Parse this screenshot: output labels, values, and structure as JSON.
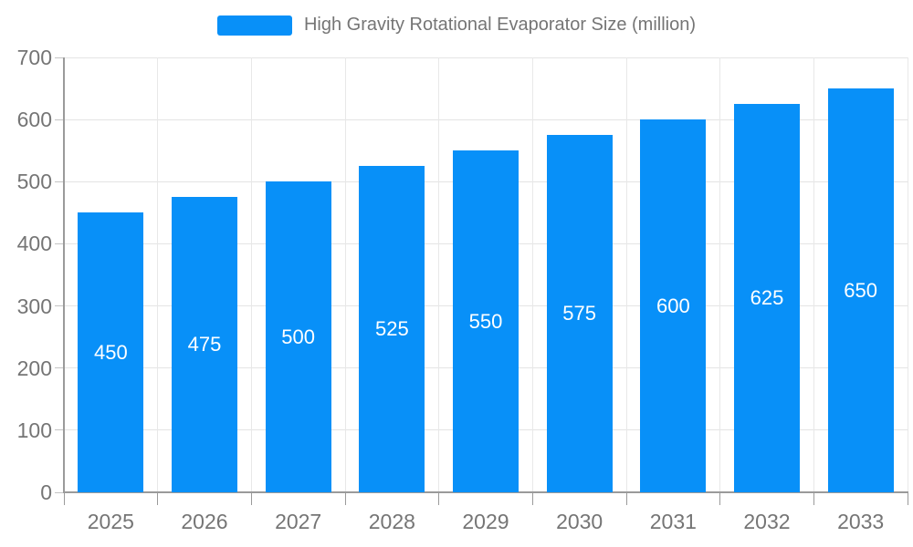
{
  "legend": {
    "label": "High Gravity Rotational Evaporator Size (million)",
    "swatch_color": "#0890F8"
  },
  "chart_data": {
    "type": "bar",
    "title": "High Gravity Rotational Evaporator Size (million)",
    "categories": [
      "2025",
      "2026",
      "2027",
      "2028",
      "2029",
      "2030",
      "2031",
      "2032",
      "2033"
    ],
    "values": [
      450,
      475,
      500,
      525,
      550,
      575,
      600,
      625,
      650
    ],
    "xlabel": "",
    "ylabel": "",
    "ylim": [
      0,
      700
    ],
    "yticks": [
      0,
      100,
      200,
      300,
      400,
      500,
      600,
      700
    ],
    "grid": true,
    "legend_position": "top",
    "bar_color": "#0890F8",
    "bar_label_color": "#FFFFFF",
    "axis_line_color": "#9A9A9A",
    "grid_color": "#E4E4E4",
    "axis_text_color": "#757575"
  }
}
